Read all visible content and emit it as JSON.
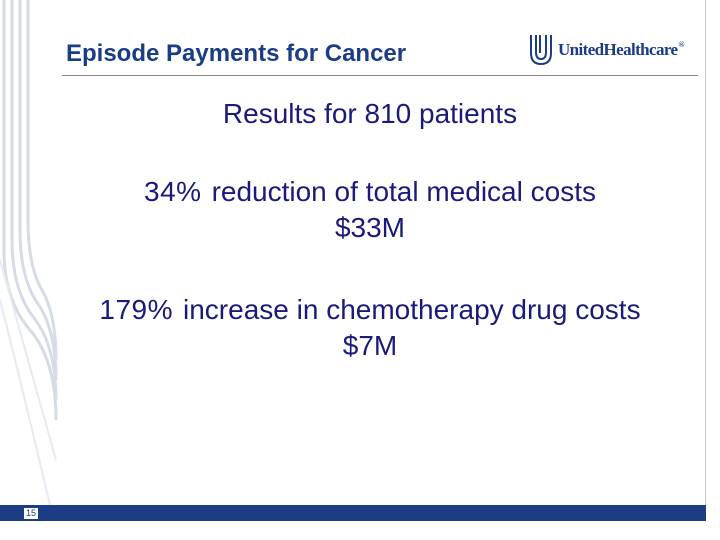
{
  "slide": {
    "title": "Episode Payments for Cancer",
    "subtitle": "Results for 810 patients",
    "page_number": "15"
  },
  "logo": {
    "name": "UnitedHealthcare",
    "registered_mark": "®",
    "icon": "unitedhealthcare-u-logo-icon"
  },
  "stats": [
    {
      "percent": "34%",
      "description": "reduction of total medical costs",
      "amount": "$33M"
    },
    {
      "percent": "179%",
      "description": "increase in chemotherapy drug costs",
      "amount": "$7M"
    }
  ],
  "colors": {
    "title_blue": "#1a3d86",
    "body_text": "#1a1a7a",
    "stripe_gray": "#c9d3e0",
    "footer_bar": "#1a3d86"
  }
}
